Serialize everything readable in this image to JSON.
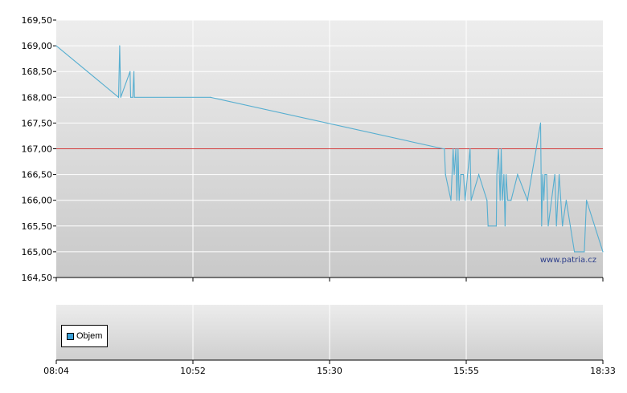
{
  "colors": {
    "line": "#56aed0",
    "reference_line": "#d33b3b",
    "volume_swatch": "#3a9fd6"
  },
  "chart_data": [
    {
      "type": "line",
      "title": "",
      "xlabel": "",
      "ylabel": "",
      "x_ticks": [
        "08:04",
        "10:52",
        "15:30",
        "15:55",
        "18:33"
      ],
      "y_ticks": [
        "164,50",
        "165,00",
        "165,50",
        "166,00",
        "166,50",
        "167,00",
        "167,50",
        "168,00",
        "168,50",
        "169,00",
        "169,50"
      ],
      "ylim": [
        164.5,
        169.5
      ],
      "reference_line": 167.0,
      "grid": true,
      "watermark": "www.patria.cz",
      "series": [
        {
          "points": [
            [
              0.0,
              169.0
            ],
            [
              0.114,
              168.0
            ],
            [
              0.116,
              169.0
            ],
            [
              0.118,
              168.0
            ],
            [
              0.135,
              168.5
            ],
            [
              0.136,
              168.0
            ],
            [
              0.14,
              168.0
            ],
            [
              0.142,
              168.5
            ],
            [
              0.143,
              168.0
            ],
            [
              0.282,
              168.0
            ],
            [
              0.708,
              167.0
            ],
            [
              0.71,
              167.0
            ],
            [
              0.712,
              166.5
            ],
            [
              0.722,
              166.0
            ],
            [
              0.726,
              167.0
            ],
            [
              0.728,
              166.5
            ],
            [
              0.731,
              167.0
            ],
            [
              0.733,
              166.0
            ],
            [
              0.735,
              167.0
            ],
            [
              0.737,
              166.0
            ],
            [
              0.74,
              166.5
            ],
            [
              0.745,
              166.5
            ],
            [
              0.748,
              166.0
            ],
            [
              0.757,
              167.0
            ],
            [
              0.759,
              166.0
            ],
            [
              0.773,
              166.5
            ],
            [
              0.788,
              166.0
            ],
            [
              0.79,
              165.5
            ],
            [
              0.805,
              165.5
            ],
            [
              0.806,
              166.5
            ],
            [
              0.809,
              167.0
            ],
            [
              0.812,
              166.0
            ],
            [
              0.814,
              167.0
            ],
            [
              0.816,
              166.0
            ],
            [
              0.819,
              166.5
            ],
            [
              0.821,
              165.5
            ],
            [
              0.823,
              166.5
            ],
            [
              0.826,
              166.0
            ],
            [
              0.832,
              166.0
            ],
            [
              0.844,
              166.5
            ],
            [
              0.862,
              166.0
            ],
            [
              0.886,
              167.5
            ],
            [
              0.888,
              165.5
            ],
            [
              0.89,
              166.5
            ],
            [
              0.892,
              166.0
            ],
            [
              0.894,
              166.5
            ],
            [
              0.897,
              166.5
            ],
            [
              0.9,
              165.5
            ],
            [
              0.912,
              166.5
            ],
            [
              0.915,
              165.5
            ],
            [
              0.92,
              166.5
            ],
            [
              0.926,
              165.5
            ],
            [
              0.933,
              166.0
            ],
            [
              0.948,
              165.0
            ],
            [
              0.966,
              165.0
            ],
            [
              0.97,
              166.0
            ],
            [
              1.0,
              165.0
            ]
          ]
        }
      ]
    },
    {
      "type": "bar",
      "title": "",
      "x_ticks": [
        "08:04",
        "10:52",
        "15:30",
        "15:55",
        "18:33"
      ],
      "legend": [
        "Objem"
      ],
      "legend_position": "left",
      "series": [
        {
          "name": "Objem",
          "values": []
        }
      ]
    }
  ]
}
